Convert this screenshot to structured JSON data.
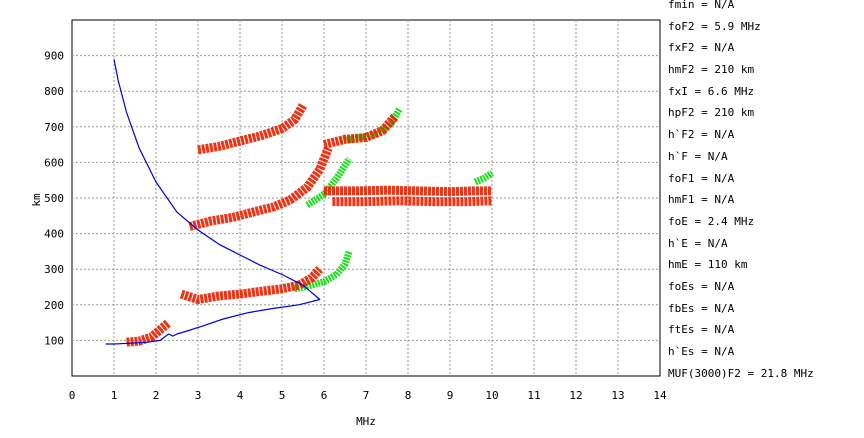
{
  "chart_data": {
    "type": "scatter",
    "title": "",
    "xlabel": "MHz",
    "ylabel": "km",
    "xlim": [
      0,
      14
    ],
    "ylim": [
      0,
      1000
    ],
    "x_ticks": [
      0,
      1,
      2,
      3,
      4,
      5,
      6,
      7,
      8,
      9,
      10,
      11,
      12,
      13,
      14
    ],
    "y_ticks": [
      100,
      200,
      300,
      400,
      500,
      600,
      700,
      800,
      900
    ],
    "grid": true,
    "colors": {
      "o_trace": "#ee2200",
      "x_trace": "#00dd00",
      "profile": "#0000dd",
      "grid": "#999999"
    },
    "profile_line": {
      "x": [
        1.0,
        1.1,
        1.3,
        1.6,
        2.0,
        2.5,
        3.0,
        3.5,
        4.0,
        4.5,
        5.0,
        5.5,
        5.9,
        5.4,
        4.8,
        4.2,
        3.6,
        3.1,
        2.7,
        2.5,
        2.4,
        2.3,
        2.1,
        1.8,
        1.4,
        1.0,
        0.8
      ],
      "y": [
        890,
        830,
        740,
        640,
        545,
        460,
        410,
        370,
        340,
        310,
        285,
        255,
        215,
        200,
        190,
        178,
        160,
        140,
        125,
        118,
        112,
        118,
        100,
        95,
        92,
        90,
        90
      ]
    },
    "o_traces": [
      {
        "x": [
          1.3,
          1.6,
          1.9,
          2.1,
          2.3
        ],
        "y": [
          95,
          98,
          110,
          130,
          150
        ]
      },
      {
        "x": [
          2.6,
          3.0,
          3.5,
          4.0,
          4.5,
          5.0,
          5.4,
          5.7,
          5.9
        ],
        "y": [
          230,
          215,
          225,
          230,
          238,
          245,
          255,
          275,
          300
        ]
      },
      {
        "x": [
          2.8,
          3.3,
          3.8,
          4.3,
          4.8,
          5.2,
          5.6,
          5.9,
          6.1
        ],
        "y": [
          420,
          435,
          445,
          460,
          475,
          495,
          530,
          580,
          640
        ]
      },
      {
        "x": [
          3.0,
          3.5,
          4.0,
          4.5,
          5.0,
          5.3,
          5.5
        ],
        "y": [
          635,
          645,
          660,
          675,
          695,
          720,
          760
        ]
      },
      {
        "x": [
          6.0,
          6.5,
          7.0,
          7.4,
          7.7
        ],
        "y": [
          650,
          665,
          670,
          690,
          730
        ]
      },
      {
        "x": [
          6.0,
          6.8,
          7.5,
          8.2,
          9.0,
          9.6,
          10.0
        ],
        "y": [
          520,
          520,
          522,
          520,
          518,
          520,
          520
        ]
      },
      {
        "x": [
          6.2,
          7.0,
          7.8,
          8.6,
          9.4,
          10.0
        ],
        "y": [
          490,
          490,
          492,
          490,
          490,
          492
        ]
      }
    ],
    "x_traces": [
      {
        "x": [
          5.3,
          5.7,
          6.0,
          6.3,
          6.5,
          6.6
        ],
        "y": [
          245,
          255,
          265,
          285,
          315,
          350
        ]
      },
      {
        "x": [
          5.6,
          6.0,
          6.3,
          6.6
        ],
        "y": [
          480,
          510,
          555,
          610
        ]
      },
      {
        "x": [
          6.4,
          6.9,
          7.3,
          7.6,
          7.8
        ],
        "y": [
          660,
          670,
          680,
          710,
          750
        ]
      },
      {
        "x": [
          9.6,
          9.8,
          10.0
        ],
        "y": [
          545,
          555,
          570
        ]
      }
    ]
  },
  "parameters": [
    "fmin = N/A",
    "foF2 = 5.9 MHz",
    "fxF2 = N/A",
    "hmF2 = 210 km",
    "fxI = 6.6 MHz",
    "hpF2 = 210 km",
    "h`F2 = N/A",
    "h`F = N/A",
    "foF1 = N/A",
    "hmF1 = N/A",
    "foE = 2.4 MHz",
    "h`E = N/A",
    "hmE = 110 km",
    "foEs = N/A",
    "fbEs = N/A",
    "ftEs = N/A",
    "h`Es = N/A",
    "MUF(3000)F2 = 21.8 MHz"
  ]
}
